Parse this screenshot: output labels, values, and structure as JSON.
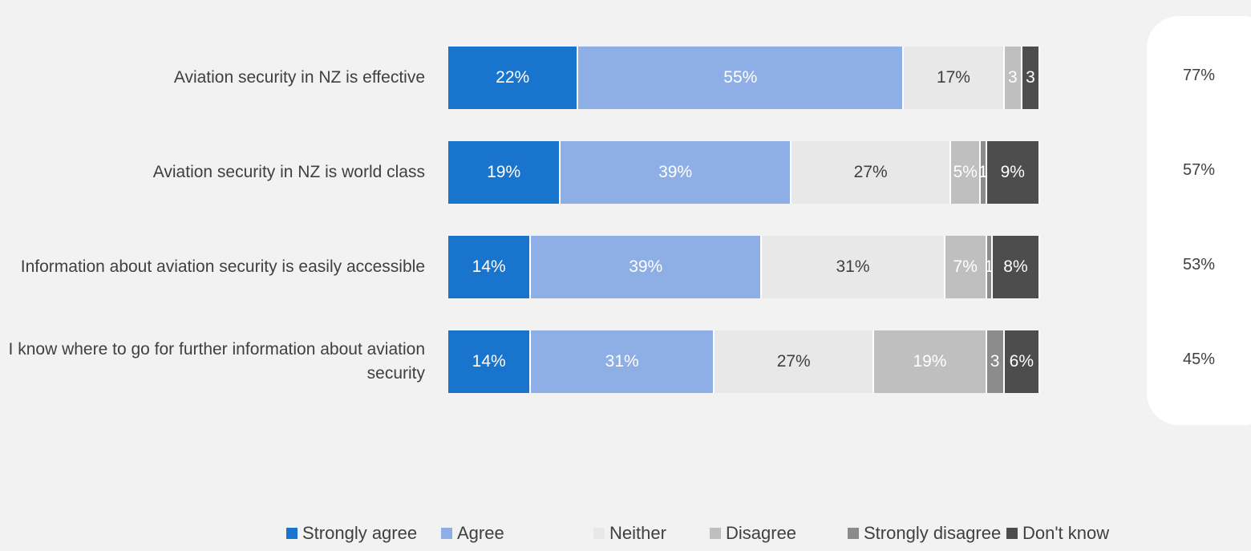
{
  "chart_data": {
    "type": "bar",
    "orientation": "horizontal",
    "stacked": true,
    "categories": [
      "Aviation security in NZ is effective",
      "Aviation security in NZ is world class",
      "Information about aviation security is easily accessible",
      "I know where to go for further information about aviation security"
    ],
    "xlim": [
      0,
      100
    ],
    "series": [
      {
        "name": "Strongly agree",
        "color": "#1874cd",
        "label_color": "#ffffff",
        "values": [
          22,
          19,
          14,
          14
        ],
        "value_labels": [
          "22%",
          "19%",
          "14%",
          "14%"
        ]
      },
      {
        "name": "Agree",
        "color": "#8eaee6",
        "label_color": "#ffffff",
        "values": [
          55,
          39,
          39,
          31
        ],
        "value_labels": [
          "55%",
          "39%",
          "39%",
          "31%"
        ]
      },
      {
        "name": "Neither",
        "color": "#e8e8e8",
        "label_color": "#404040",
        "values": [
          17,
          27,
          31,
          27
        ],
        "value_labels": [
          "17%",
          "27%",
          "31%",
          "27%"
        ]
      },
      {
        "name": "Disagree",
        "color": "#bfbfbf",
        "label_color": "#ffffff",
        "values": [
          3,
          5,
          7,
          19
        ],
        "value_labels": [
          "3",
          "5%",
          "7%",
          "19%"
        ]
      },
      {
        "name": "Strongly disagree",
        "color": "#8c8c8c",
        "label_color": "#ffffff",
        "values": [
          0,
          1,
          1,
          3
        ],
        "value_labels": [
          null,
          "1",
          "1",
          "3"
        ]
      },
      {
        "name": "Don't know",
        "color": "#4d4d4d",
        "label_color": "#ffffff",
        "values": [
          3,
          9,
          8,
          6
        ],
        "value_labels": [
          "3",
          "9%",
          "8%",
          "6%"
        ]
      }
    ],
    "net": [
      77,
      57,
      53,
      45
    ],
    "net_labels": [
      "77%",
      "57%",
      "53%",
      "45%"
    ]
  }
}
